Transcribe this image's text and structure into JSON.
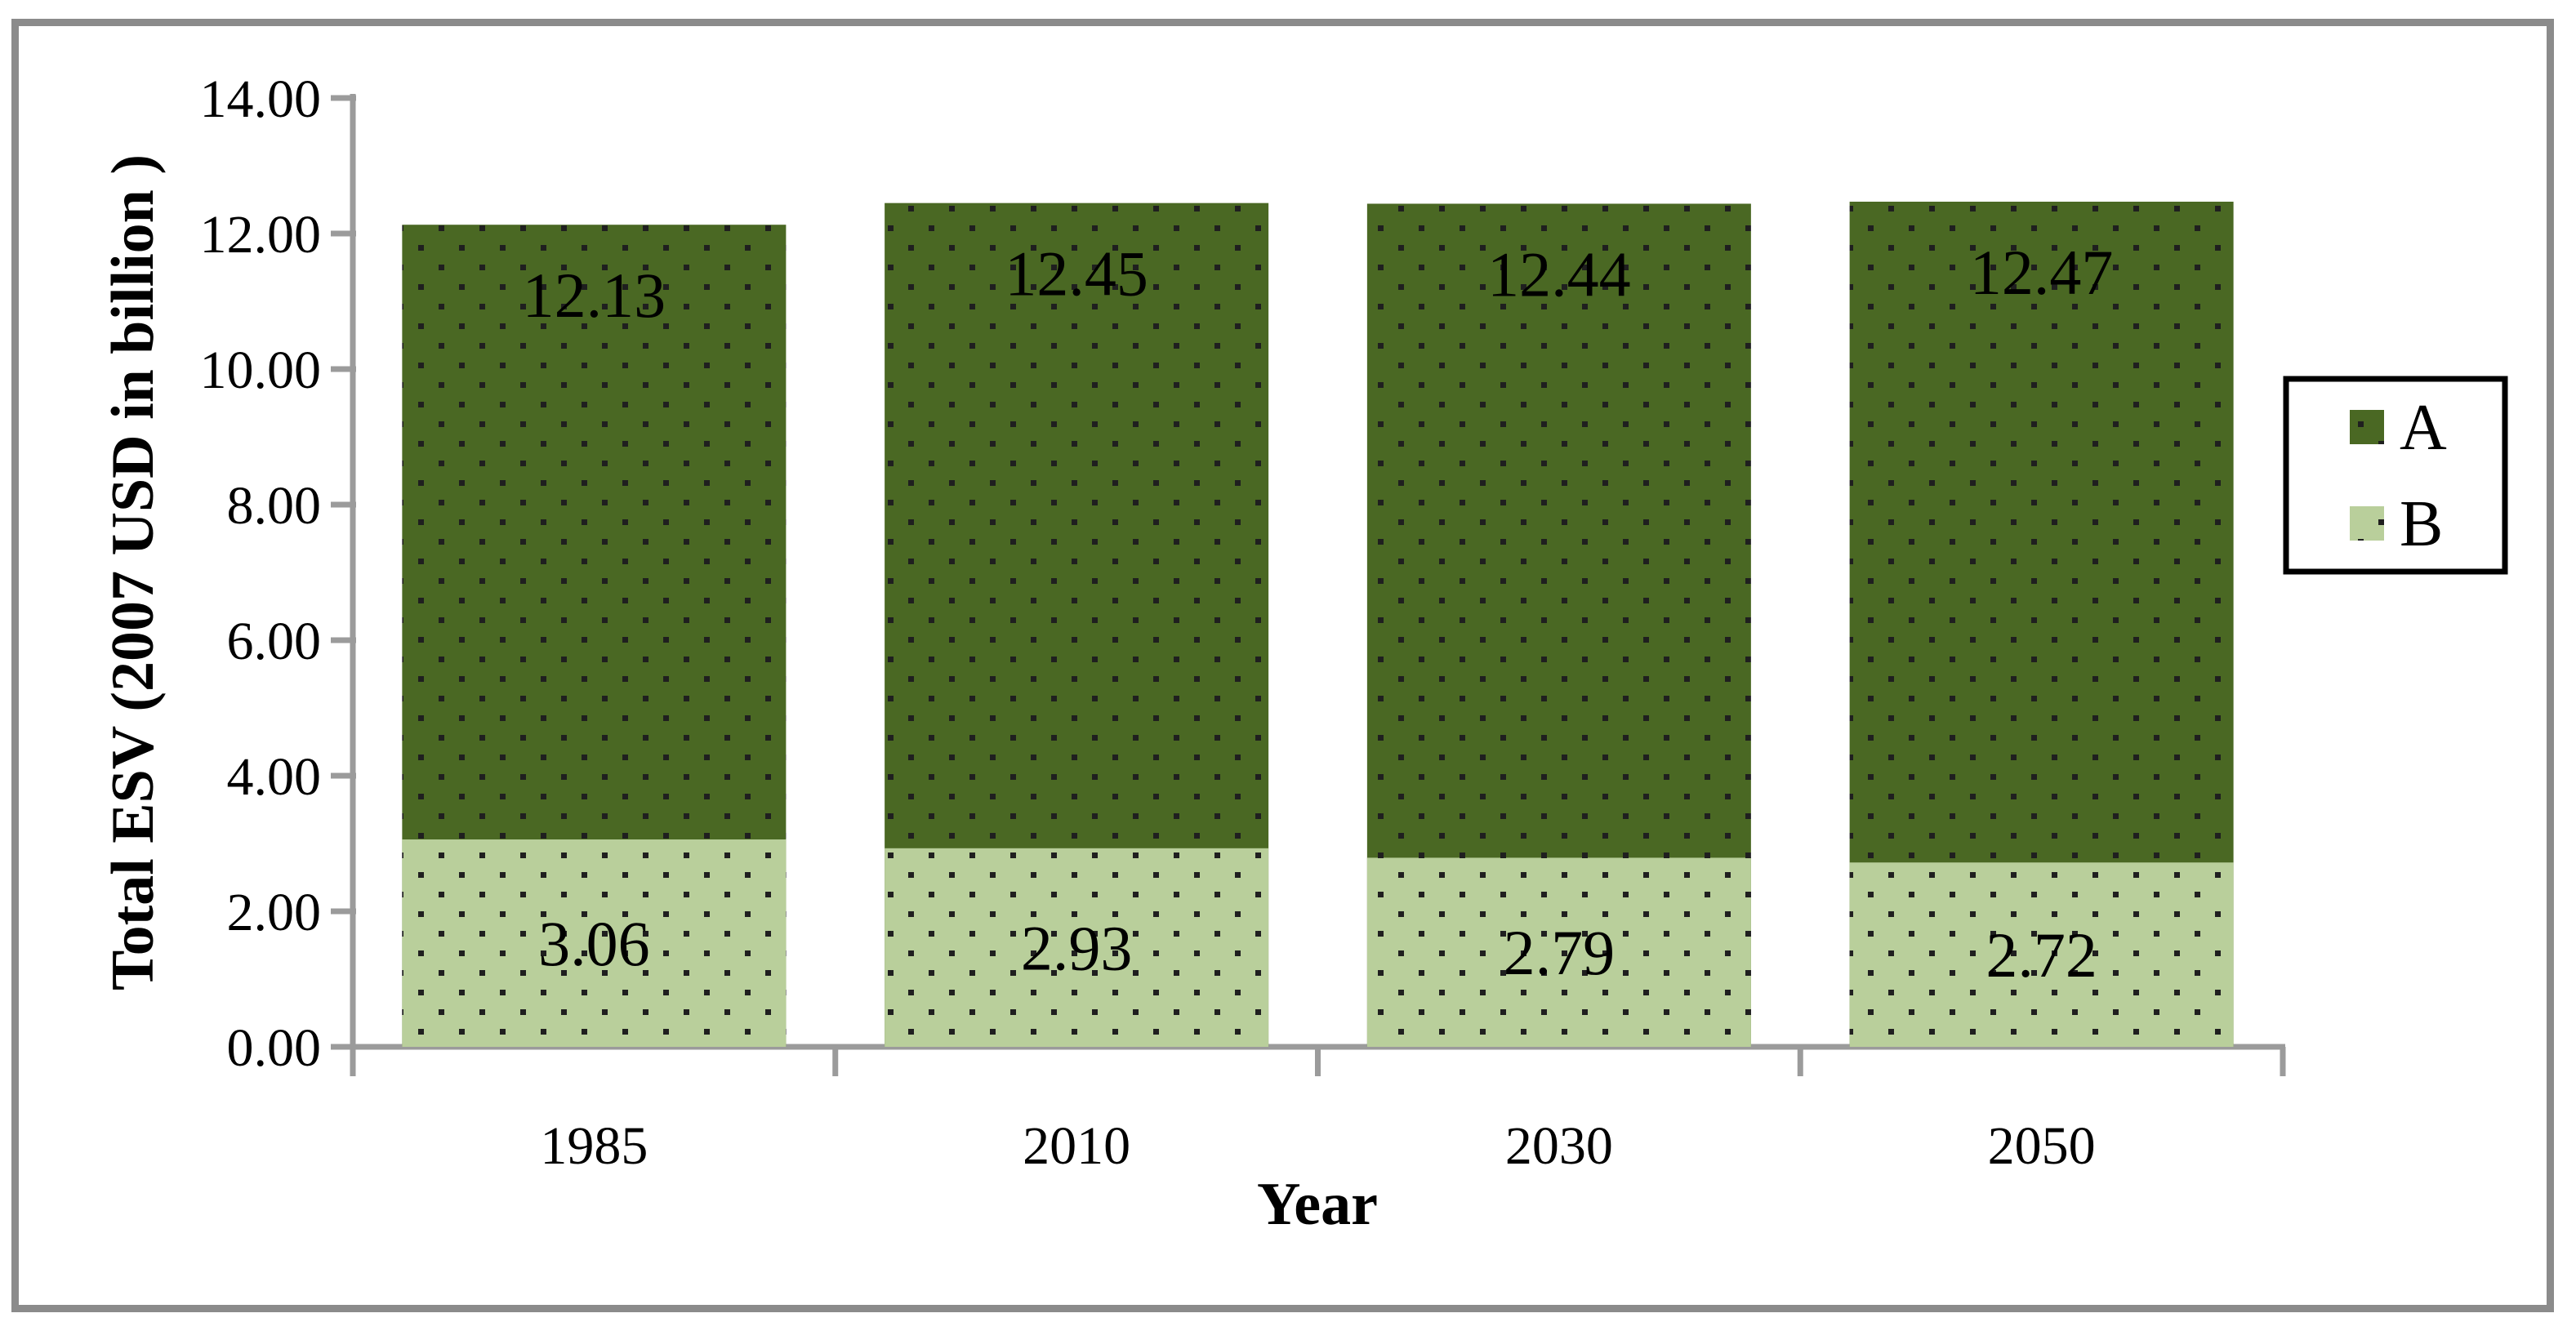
{
  "figure": {
    "background": "#ffffff",
    "frame_color": "#8b8b8b"
  },
  "axes": {
    "y_title": "Total ESV (2007 USD in billion )",
    "x_title": "Year",
    "y_tick_labels": [
      "0.00",
      "2.00",
      "4.00",
      "6.00",
      "8.00",
      "10.00",
      "12.00",
      "14.00"
    ],
    "axis_color": "#9b9b9b",
    "text_color": "#000000"
  },
  "legend": {
    "border_color": "#000000",
    "items": [
      {
        "label": "A",
        "series": "A"
      },
      {
        "label": "B",
        "series": "B"
      }
    ]
  },
  "chart_data": {
    "type": "bar",
    "subtype": "overlapped-columns",
    "title": "",
    "xlabel": "Year",
    "ylabel": "Total ESV (2007 USD in billion )",
    "categories": [
      "1985",
      "2010",
      "2030",
      "2050"
    ],
    "series": [
      {
        "name": "A",
        "values": [
          12.13,
          12.45,
          12.44,
          12.47
        ],
        "data_labels": [
          "12.13",
          "12.45",
          "12.44",
          "12.47"
        ],
        "fill": "#4a6823",
        "pattern_dot": "#1f1f1f",
        "label_position": "inside-end"
      },
      {
        "name": "B",
        "values": [
          3.06,
          2.93,
          2.79,
          2.72
        ],
        "data_labels": [
          "3.06",
          "2.93",
          "2.79",
          "2.72"
        ],
        "fill": "#b9cf9b",
        "pattern_dot": "#1f1f1f",
        "label_position": "center"
      }
    ],
    "ylim": [
      0,
      14
    ],
    "ytick_step": 2,
    "grid": false,
    "pattern": "dotted",
    "legend_position": "right"
  }
}
